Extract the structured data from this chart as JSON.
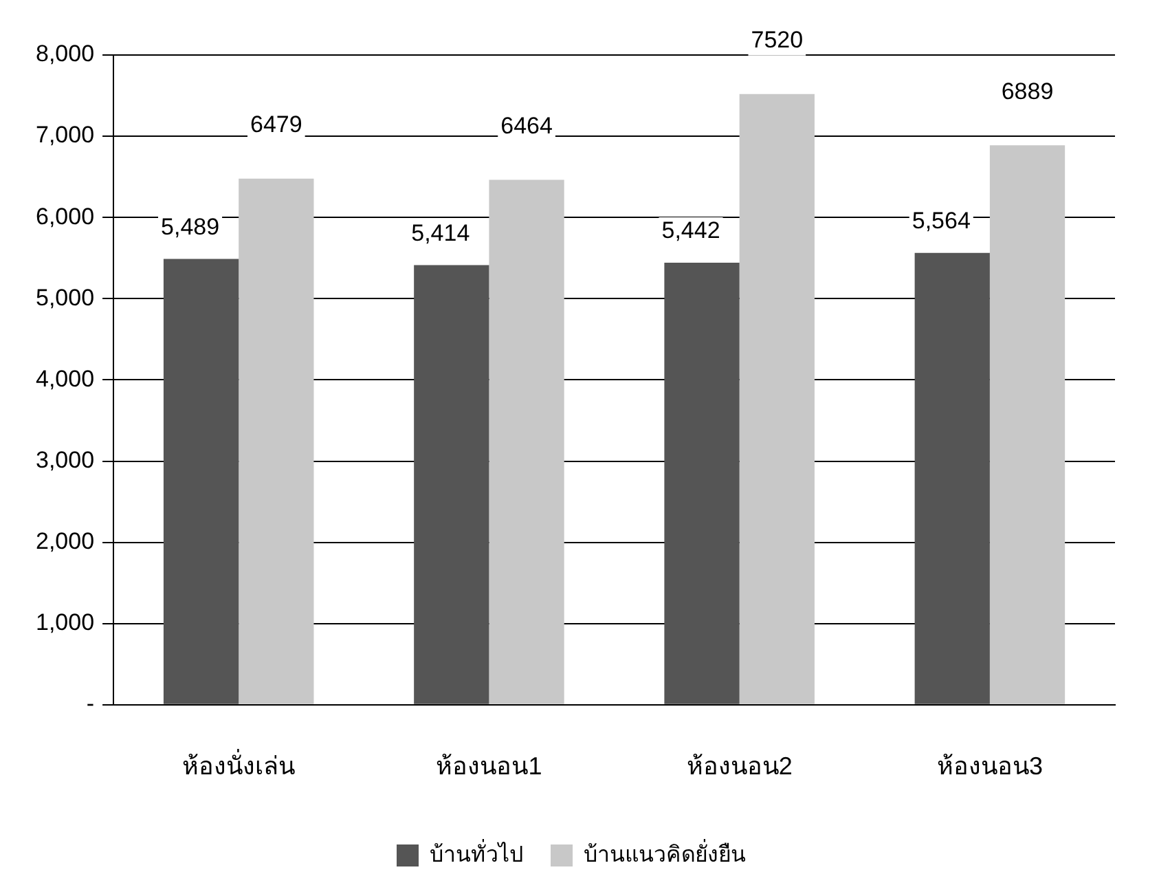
{
  "chart_data": {
    "type": "bar",
    "categories": [
      "ห้องนั่งเล่น",
      "ห้องนอน1",
      "ห้องนอน2",
      "ห้องนอน3"
    ],
    "series": [
      {
        "name": "บ้านทั่วไป",
        "color": "#555555",
        "values": [
          5489,
          5414,
          5442,
          5564
        ],
        "value_labels": [
          "5,489",
          "5,414",
          "5,442",
          "5,564"
        ]
      },
      {
        "name": "บ้านแนวคิดยั่งยืน",
        "color": "#c8c8c8",
        "values": [
          6479,
          6464,
          7520,
          6889
        ],
        "value_labels": [
          "6479",
          "6464",
          "7520",
          "6889"
        ]
      }
    ],
    "ylim": [
      0,
      8000
    ],
    "yticks": [
      {
        "value": 0,
        "label": "-"
      },
      {
        "value": 1000,
        "label": "1,000"
      },
      {
        "value": 2000,
        "label": "2,000"
      },
      {
        "value": 3000,
        "label": "3,000"
      },
      {
        "value": 4000,
        "label": "4,000"
      },
      {
        "value": 5000,
        "label": "5,000"
      },
      {
        "value": 6000,
        "label": "6,000"
      },
      {
        "value": 7000,
        "label": "7,000"
      },
      {
        "value": 8000,
        "label": "8,000"
      }
    ],
    "grid": "y",
    "legend": "bottom"
  }
}
